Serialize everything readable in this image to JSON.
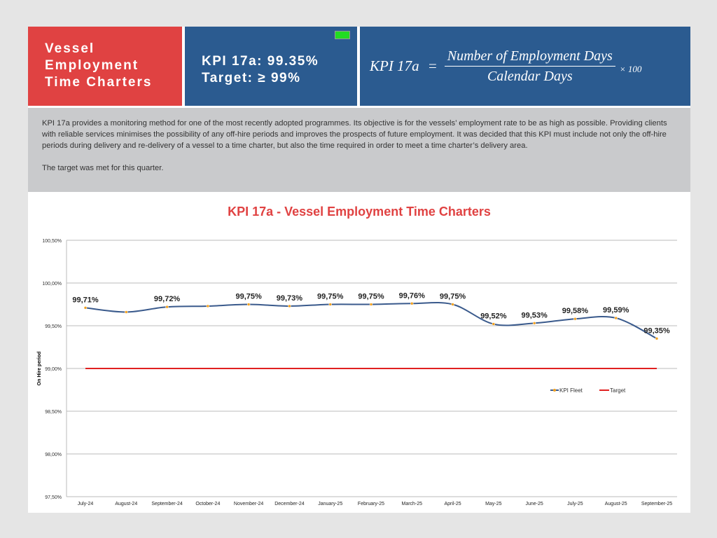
{
  "header": {
    "title_lines": [
      "Vessel",
      "Employment",
      "Time Charters"
    ],
    "kpi_line": "KPI 17a: 99.35%",
    "target_line": "Target: ≥ 99%",
    "status_color": "#22dd22",
    "formula": {
      "lhs": "KPI  17a",
      "eq": "=",
      "numerator": "Number of Employment Days",
      "denominator": "Calendar Days",
      "multiplier": "× 100"
    }
  },
  "description": {
    "paragraph": "KPI 17a provides a monitoring method for one of the most recently adopted programmes. Its objective is for the vessels’ employment rate to be as high as possible. Providing clients with reliable services minimises the possibility of any off-hire periods and improves the prospects of future employment. It was decided that this KPI must include not only the off-hire periods during delivery and re-delivery of a vessel to a time charter, but also the time required in order to meet a time charter’s delivery area.",
    "conclusion": "The target was met for this quarter."
  },
  "colors": {
    "red": "#e04242",
    "blue": "#2b5b90",
    "series": "#3a5a8c",
    "target": "#e02020",
    "marker": "#f0a020"
  },
  "chart_data": {
    "type": "line",
    "title": "KPI 17a - Vessel Employment Time Charters",
    "ylabel": "On Hire period",
    "ylim": [
      97.5,
      100.5
    ],
    "yticks": [
      "97,50%",
      "98,00%",
      "98,50%",
      "99,00%",
      "99,50%",
      "100,00%",
      "100,50%"
    ],
    "grid": true,
    "legend": "right",
    "categories": [
      "July-24",
      "August-24",
      "September-24",
      "October-24",
      "November-24",
      "December-24",
      "January-25",
      "February-25",
      "March-25",
      "April-25",
      "May-25",
      "June-25",
      "July-25",
      "August-25",
      "September-25"
    ],
    "series": [
      {
        "name": "KPI Fleet",
        "values": [
          99.71,
          99.66,
          99.72,
          99.73,
          99.75,
          99.73,
          99.75,
          99.75,
          99.76,
          99.75,
          99.52,
          99.53,
          99.58,
          99.59,
          99.35
        ],
        "labels": [
          "99,71%",
          null,
          "99,72%",
          null,
          "99,75%",
          "99,73%",
          "99,75%",
          "99,75%",
          "99,76%",
          "99,75%",
          "99,52%",
          "99,53%",
          "99,58%",
          "99,59%",
          "99,35%"
        ]
      },
      {
        "name": "Target",
        "values": [
          99,
          99,
          99,
          99,
          99,
          99,
          99,
          99,
          99,
          99,
          99,
          99,
          99,
          99,
          99
        ]
      }
    ]
  }
}
